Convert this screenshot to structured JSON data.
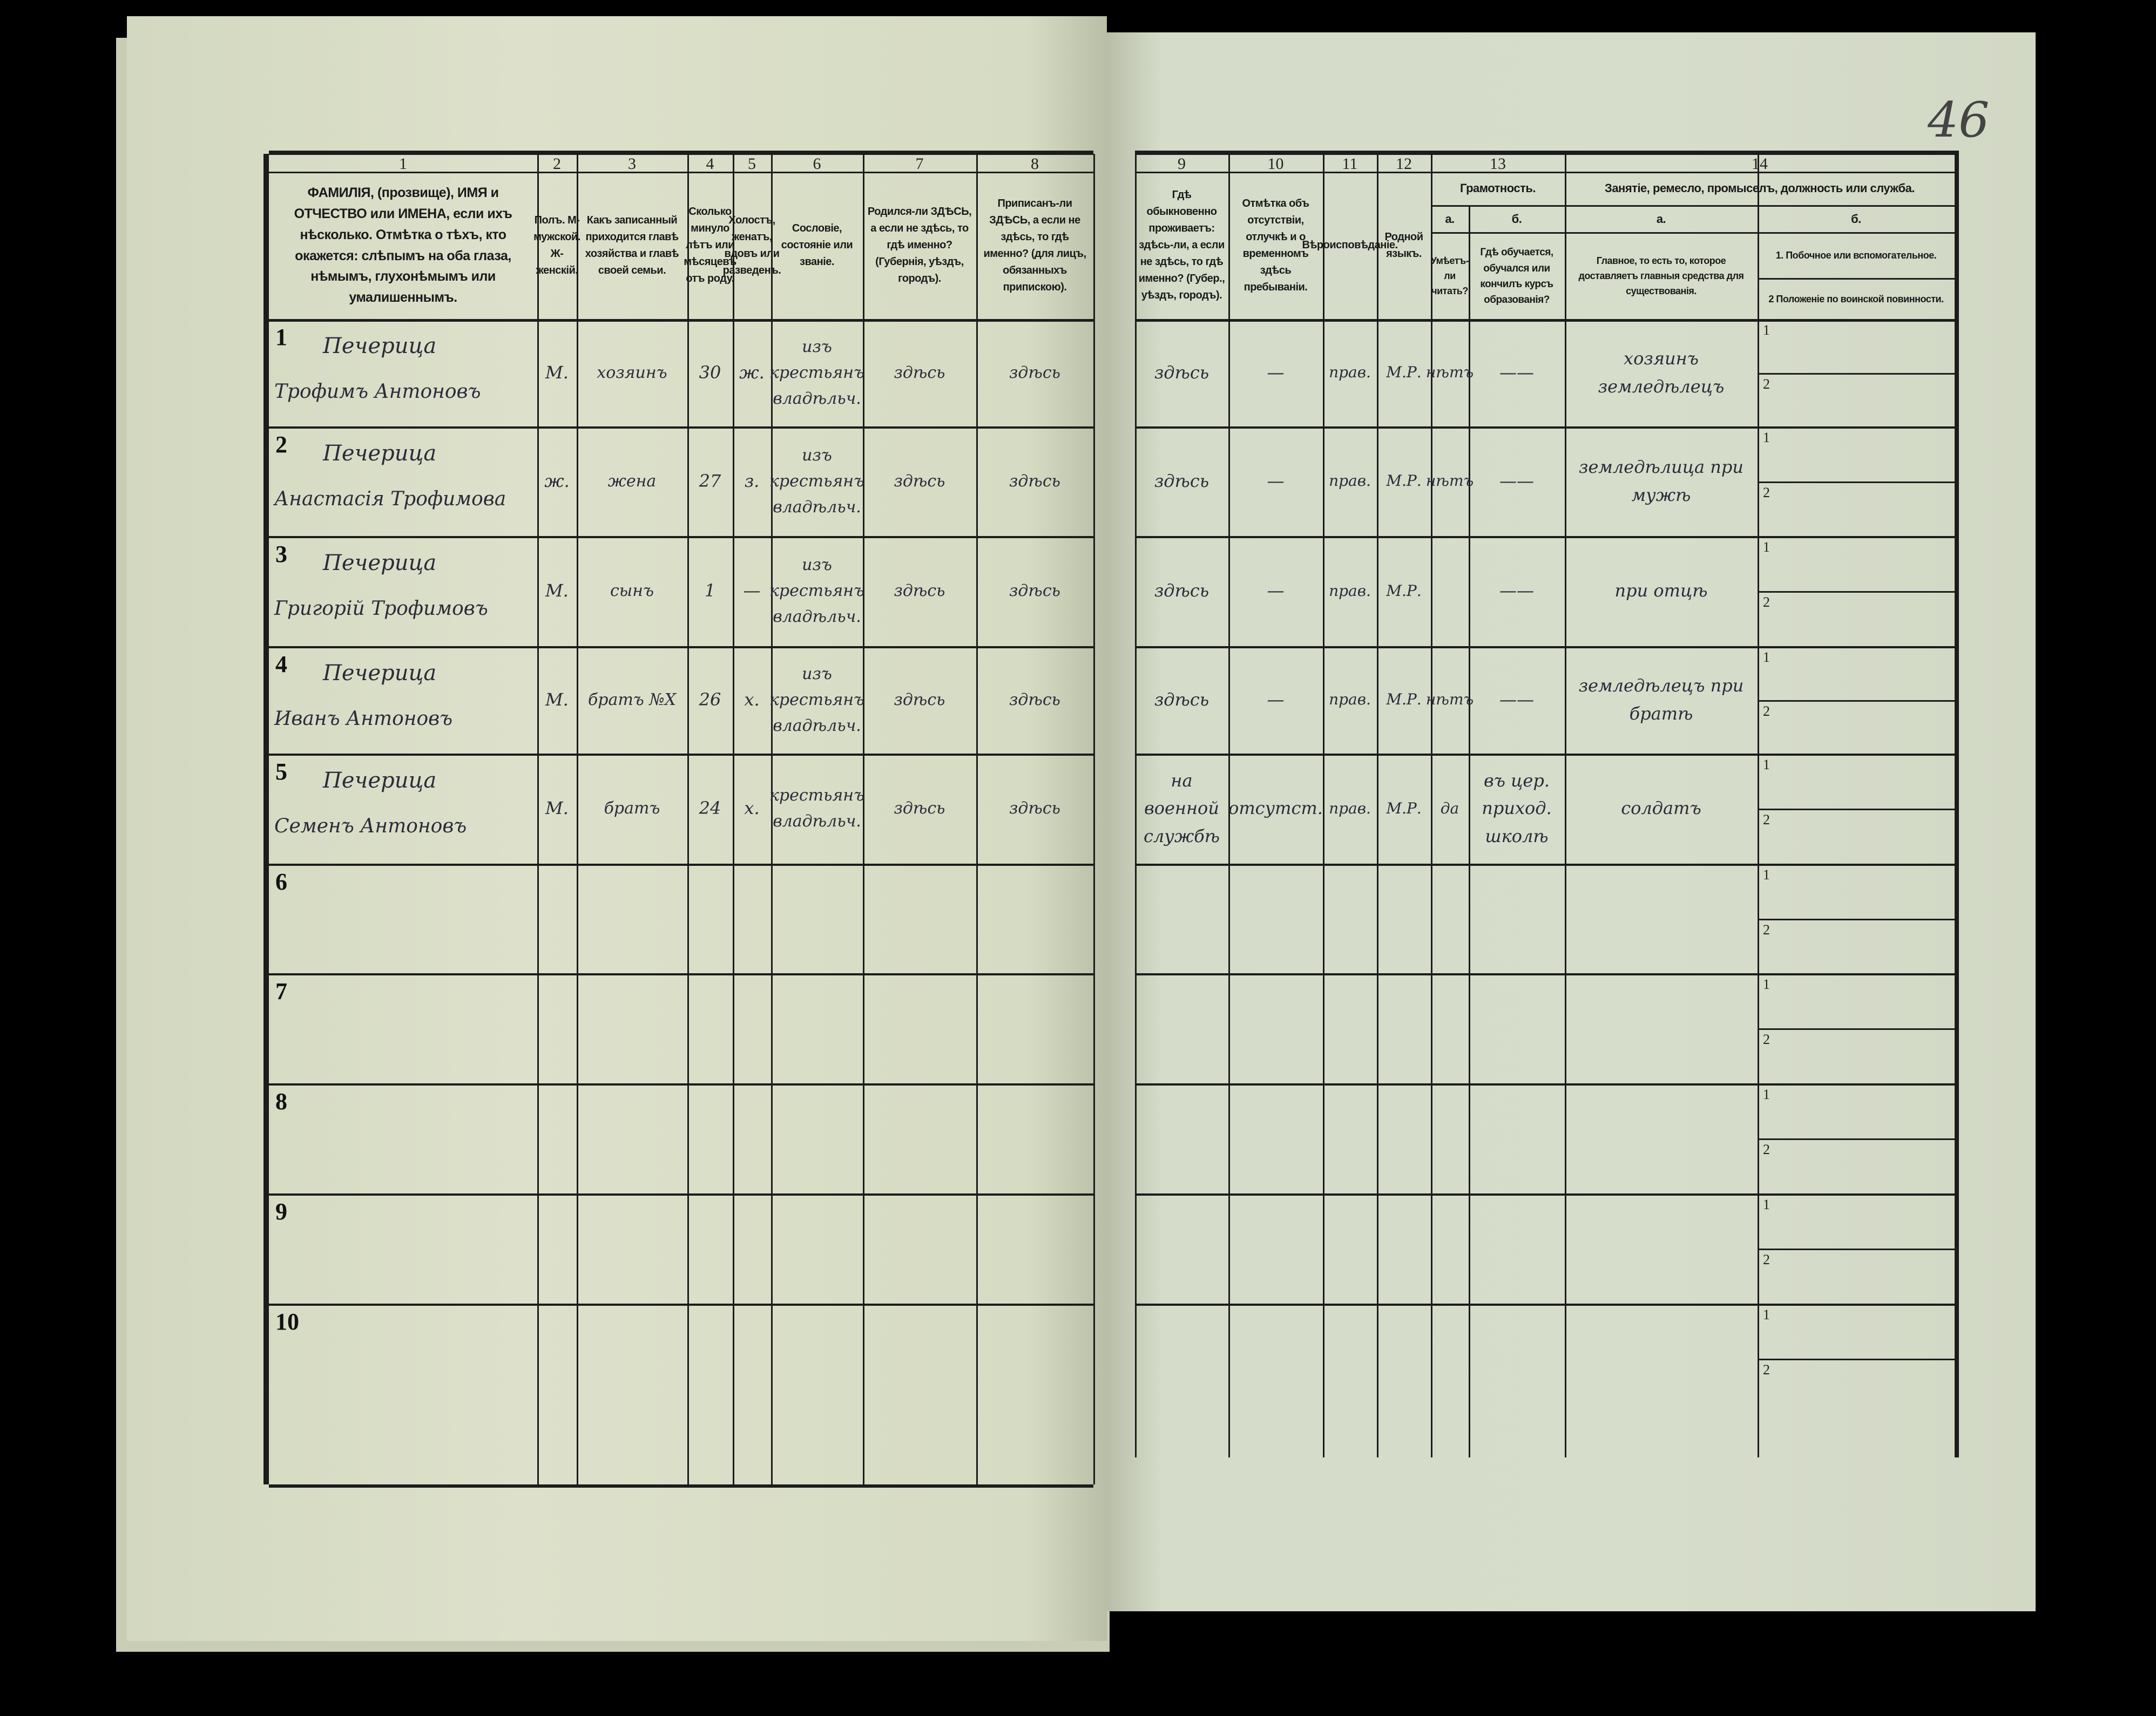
{
  "sheet_number": "46",
  "header": {
    "left": [
      {
        "num": "1",
        "text": "ФАМИЛІЯ, (прозвище), ИМЯ и ОТЧЕСТВО или ИМЕНА, если ихъ нѣсколько. Отмѣтка о тѣхъ, кто окажется: слѣпымъ на оба глаза, нѣмымъ, глухонѣмымъ или умалишеннымъ."
      },
      {
        "num": "2",
        "text": "Полъ. М-мужской. Ж-женскій."
      },
      {
        "num": "3",
        "text": "Какъ записанный приходится главѣ хозяйства и главѣ своей семьи."
      },
      {
        "num": "4",
        "text": "Сколько минуло лѣтъ или мѣсяцевъ отъ роду."
      },
      {
        "num": "5",
        "text": "Холостъ, женатъ, вдовъ или разведенъ."
      },
      {
        "num": "6",
        "text": "Сословіе, состояніе или званіе."
      },
      {
        "num": "7",
        "text": "Родился-ли ЗДѢСЬ, а если не здѣсь, то гдѣ именно? (Губернія, уѣздъ, городъ)."
      },
      {
        "num": "8",
        "text": "Приписанъ-ли ЗДѢСЬ, а если не здѣсь, то гдѣ именно? (для лицъ, обязанныхъ припискою)."
      }
    ],
    "right": [
      {
        "num": "9",
        "text": "Гдѣ обыкновенно проживаетъ: здѣсь-ли, а если не здѣсь, то гдѣ именно? (Губер., уѣздъ, городъ)."
      },
      {
        "num": "10",
        "text": "Отмѣтка объ отсутствіи, отлучкѣ и о временномъ здѣсь пребываніи."
      },
      {
        "num": "11",
        "text": "Вѣроисповѣданіе."
      },
      {
        "num": "12",
        "text": "Родной языкъ."
      }
    ],
    "literacy": {
      "num": "13",
      "title": "Грамотность.",
      "a_label": "а.",
      "a_text": "Умѣетъ-ли читать?",
      "b_label": "б.",
      "b_text": "Гдѣ обучается, обучался или кончилъ курсъ образованія?"
    },
    "occupation": {
      "num": "14",
      "title": "Занятіе, ремесло, промыселъ, должность или служба.",
      "a_label": "а.",
      "a_text": "Главное, то есть то, которое доставляетъ главныя средства для существованія.",
      "b_label": "б.",
      "b_text_1": "1. Побочное или вспомогательное.",
      "b_text_2": "2 Положеніе по воинской повинности."
    }
  },
  "sub_labels": [
    "1",
    "2"
  ],
  "rows": [
    {
      "num": "1",
      "surname": "Печерица",
      "name": "Трофимъ Антоновъ",
      "sex": "М.",
      "relation": "хозяинъ",
      "age": "30",
      "marital": "ж.",
      "estate": "изъ крестьянъ владѣльч.",
      "born": "здѣсь",
      "registered": "здѣсь",
      "residence": "здѣсь",
      "absence": "—",
      "religion": "прав.",
      "language": "М.Р.",
      "literate": "нѣтъ",
      "education": "——",
      "occupation": "хозяинъ земледѣлецъ"
    },
    {
      "num": "2",
      "surname": "Печерица",
      "name": "Анастасія Трофимова",
      "sex": "ж.",
      "relation": "жена",
      "age": "27",
      "marital": "з.",
      "estate": "изъ крестьянъ владѣльч.",
      "born": "здѣсь",
      "registered": "здѣсь",
      "residence": "здѣсь",
      "absence": "—",
      "religion": "прав.",
      "language": "М.Р.",
      "literate": "нѣтъ",
      "education": "——",
      "occupation": "земледѣлица при мужѣ"
    },
    {
      "num": "3",
      "surname": "Печерица",
      "name": "Григорій Трофимовъ",
      "sex": "М.",
      "relation": "сынъ",
      "age": "1",
      "marital": "—",
      "estate": "изъ крестьянъ владѣльч.",
      "born": "здѣсь",
      "registered": "здѣсь",
      "residence": "здѣсь",
      "absence": "—",
      "religion": "прав.",
      "language": "М.Р.",
      "literate": "",
      "education": "——",
      "occupation": "при отцѣ"
    },
    {
      "num": "4",
      "surname": "Печерица",
      "name": "Иванъ Антоновъ",
      "sex": "М.",
      "relation": "братъ №Х",
      "age": "26",
      "marital": "х.",
      "estate": "изъ крестьянъ владѣльч.",
      "born": "здѣсь",
      "registered": "здѣсь",
      "residence": "здѣсь",
      "absence": "—",
      "religion": "прав.",
      "language": "М.Р.",
      "literate": "нѣтъ",
      "education": "——",
      "occupation": "земледѣлецъ при братѣ"
    },
    {
      "num": "5",
      "surname": "Печерица",
      "name": "Семенъ Антоновъ",
      "sex": "М.",
      "relation": "братъ",
      "age": "24",
      "marital": "х.",
      "estate": "крестьянъ владѣльч.",
      "born": "здѣсь",
      "registered": "здѣсь",
      "residence": "на военной службѣ",
      "absence": "отсутст.",
      "religion": "прав.",
      "language": "М.Р.",
      "literate": "да",
      "education": "въ цер. приход. школѣ",
      "occupation": "солдатъ"
    },
    {
      "num": "6"
    },
    {
      "num": "7"
    },
    {
      "num": "8"
    },
    {
      "num": "9"
    },
    {
      "num": "10"
    }
  ]
}
